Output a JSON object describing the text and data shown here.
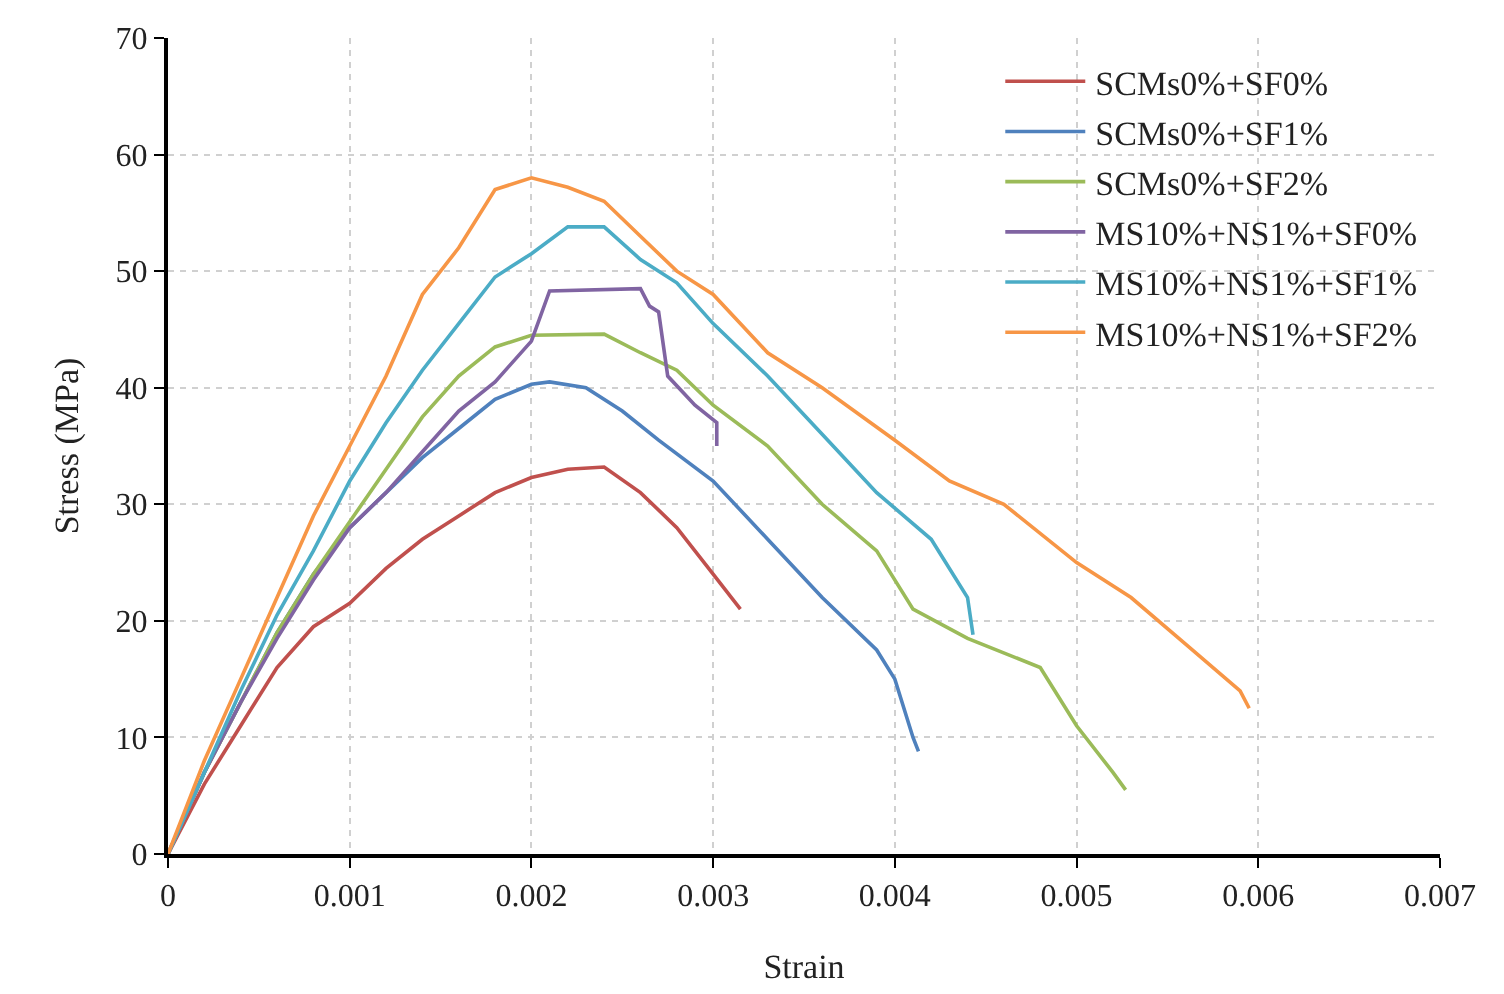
{
  "chart_data": {
    "type": "line",
    "xlabel": "Strain",
    "ylabel": "Stress (MPa)",
    "xlim": [
      0,
      0.007
    ],
    "xticks": [
      0,
      0.001,
      0.002,
      0.003,
      0.004,
      0.005,
      0.006,
      0.007
    ],
    "ylim": [
      0,
      70
    ],
    "yticks": [
      0,
      10,
      20,
      30,
      40,
      50,
      60,
      70
    ],
    "grid": true,
    "legend": "top right",
    "marker": "none",
    "line_style": "solid",
    "series": [
      {
        "name": "SCMs0%+SF0%",
        "color": "#c0504d",
        "x": [
          0,
          0.0002,
          0.0004,
          0.0006,
          0.0008,
          0.001,
          0.0012,
          0.0014,
          0.0016,
          0.0018,
          0.002,
          0.0022,
          0.0024,
          0.0026,
          0.0028,
          0.003,
          0.00315
        ],
        "values": [
          0,
          6,
          11,
          16,
          19.5,
          21.5,
          24.5,
          27,
          29,
          31,
          32.3,
          33,
          33.2,
          31,
          28,
          24,
          21
        ]
      },
      {
        "name": "SCMs0%+SF1%",
        "color": "#4f81bd",
        "x": [
          0,
          0.0002,
          0.0004,
          0.0006,
          0.0008,
          0.001,
          0.0012,
          0.0014,
          0.0016,
          0.0018,
          0.002,
          0.0021,
          0.0023,
          0.0025,
          0.0027,
          0.003,
          0.0033,
          0.0036,
          0.0039,
          0.004,
          0.0041,
          0.00413
        ],
        "values": [
          0,
          7,
          13,
          19,
          24,
          28,
          31,
          34,
          36.5,
          39,
          40.3,
          40.5,
          40,
          38,
          35.5,
          32,
          27,
          22,
          17.5,
          15,
          10,
          8.8
        ]
      },
      {
        "name": "SCMs0%+SF2%",
        "color": "#9bbb59",
        "x": [
          0,
          0.0002,
          0.0004,
          0.0006,
          0.0008,
          0.001,
          0.0012,
          0.0014,
          0.0016,
          0.0018,
          0.002,
          0.0024,
          0.0026,
          0.0028,
          0.003,
          0.0033,
          0.0036,
          0.0039,
          0.0041,
          0.0044,
          0.0048,
          0.005,
          0.0052,
          0.00527
        ],
        "values": [
          0,
          7,
          13,
          19,
          24,
          28.5,
          33,
          37.5,
          41,
          43.5,
          44.5,
          44.6,
          43,
          41.5,
          38.5,
          35,
          30,
          26,
          21,
          18.5,
          16,
          11,
          7,
          5.5
        ]
      },
      {
        "name": "MS10%+NS1%+SF0%",
        "color": "#8064a2",
        "x": [
          0,
          0.0002,
          0.0004,
          0.0006,
          0.0008,
          0.001,
          0.0012,
          0.0014,
          0.0016,
          0.0018,
          0.002,
          0.0021,
          0.0026,
          0.00265,
          0.0027,
          0.00275,
          0.0029,
          0.00302,
          0.00302
        ],
        "values": [
          0,
          7,
          13,
          18.5,
          23.5,
          28,
          31,
          34.5,
          38,
          40.5,
          44,
          48.3,
          48.5,
          47,
          46.5,
          41,
          38.5,
          37,
          35
        ]
      },
      {
        "name": "MS10%+NS1%+SF1%",
        "color": "#4bacc6",
        "x": [
          0,
          0.0002,
          0.0004,
          0.0006,
          0.0008,
          0.001,
          0.0012,
          0.0014,
          0.0016,
          0.0018,
          0.002,
          0.0022,
          0.0024,
          0.0026,
          0.0028,
          0.003,
          0.0033,
          0.0036,
          0.0039,
          0.0042,
          0.0044,
          0.00443
        ],
        "values": [
          0,
          7,
          14,
          20.5,
          26,
          32,
          37,
          41.5,
          45.5,
          49.5,
          51.5,
          53.8,
          53.8,
          51,
          49,
          45.5,
          41,
          36,
          31,
          27,
          22,
          18.8
        ]
      },
      {
        "name": "MS10%+NS1%+SF2%",
        "color": "#f79646",
        "x": [
          0,
          0.0001,
          0.0002,
          0.0004,
          0.0006,
          0.0008,
          0.001,
          0.0012,
          0.0014,
          0.0016,
          0.0018,
          0.002,
          0.0022,
          0.0024,
          0.0026,
          0.0028,
          0.003,
          0.0033,
          0.0036,
          0.004,
          0.0043,
          0.0046,
          0.005,
          0.0053,
          0.0056,
          0.0059,
          0.00595
        ],
        "values": [
          0,
          4,
          8,
          15,
          22,
          29,
          35,
          41,
          48,
          52,
          57,
          58,
          57.2,
          56,
          53,
          50,
          48,
          43,
          40,
          35.5,
          32,
          30,
          25,
          22,
          18,
          14,
          12.5
        ]
      }
    ]
  }
}
